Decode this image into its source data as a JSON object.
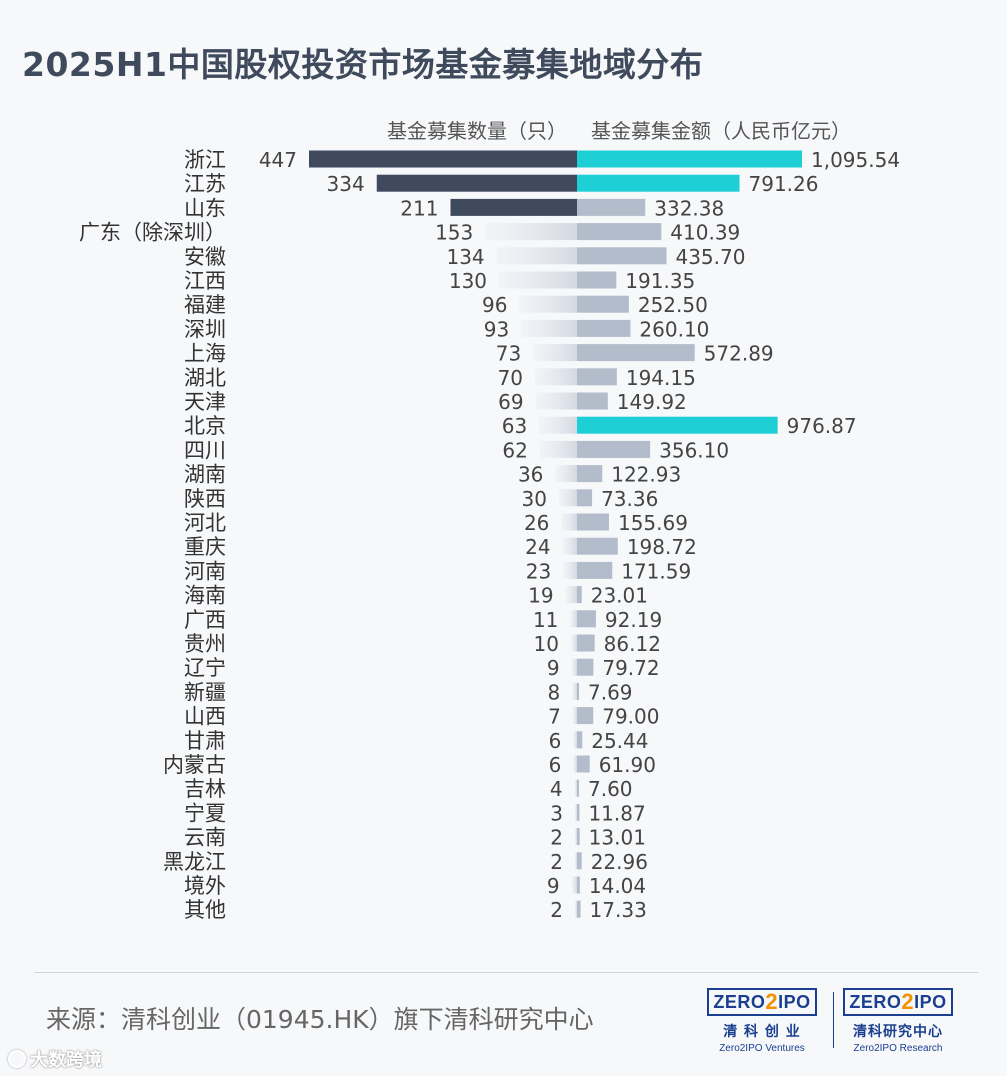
{
  "title": "2025H1中国股权投资市场基金募集地域分布",
  "source": "来源：清科创业（01945.HK）旗下清科研究中心",
  "watermark": "大数跨境",
  "logos": [
    {
      "mark_left": "ZERO",
      "mark_two": "2",
      "mark_right": "IPO",
      "cn": "清 科 创 业",
      "en": "Zero2IPO Ventures"
    },
    {
      "mark_left": "ZERO",
      "mark_two": "2",
      "mark_right": "IPO",
      "cn": "清科研究中心",
      "en": "Zero2IPO Research"
    }
  ],
  "colors": {
    "count_highlight": "#3f4a5f",
    "amount_highlight": "#1ecfd6",
    "amount_normal": "#b3bccb",
    "count_normal": "#d9dde4"
  },
  "chart_data": {
    "type": "bar",
    "orientation": "horizontal-butterfly",
    "categories": [
      "浙江",
      "江苏",
      "山东",
      "广东（除深圳）",
      "安徽",
      "江西",
      "福建",
      "深圳",
      "上海",
      "湖北",
      "天津",
      "北京",
      "四川",
      "湖南",
      "陕西",
      "河北",
      "重庆",
      "河南",
      "海南",
      "广西",
      "贵州",
      "辽宁",
      "新疆",
      "山西",
      "甘肃",
      "内蒙古",
      "吉林",
      "宁夏",
      "云南",
      "黑龙江",
      "境外",
      "其他"
    ],
    "series": [
      {
        "name": "基金募集数量（只）",
        "side": "left",
        "values": [
          447,
          334,
          211,
          153,
          134,
          130,
          96,
          93,
          73,
          70,
          69,
          63,
          62,
          36,
          30,
          26,
          24,
          23,
          19,
          11,
          10,
          9,
          8,
          7,
          6,
          6,
          4,
          3,
          2,
          2,
          9,
          2
        ],
        "labels": [
          "447",
          "334",
          "211",
          "153",
          "134",
          "130",
          "96",
          "93",
          "73",
          "70",
          "69",
          "63",
          "62",
          "36",
          "30",
          "26",
          "24",
          "23",
          "19",
          "11",
          "10",
          "9",
          "8",
          "7",
          "6",
          "6",
          "4",
          "3",
          "2",
          "2",
          "9",
          "2"
        ],
        "highlight_top": 3
      },
      {
        "name": "基金募集金额（人民币亿元）",
        "side": "right",
        "values": [
          1095.54,
          791.26,
          332.38,
          410.39,
          435.7,
          191.35,
          252.5,
          260.1,
          572.89,
          194.15,
          149.92,
          976.87,
          356.1,
          122.93,
          73.36,
          155.69,
          198.72,
          171.59,
          23.01,
          92.19,
          86.12,
          79.72,
          7.69,
          79.0,
          25.44,
          61.9,
          7.6,
          11.87,
          13.01,
          22.96,
          14.04,
          17.33
        ],
        "labels": [
          "1,095.54",
          "791.26",
          "332.38",
          "410.39",
          "435.70",
          "191.35",
          "252.50",
          "260.10",
          "572.89",
          "194.15",
          "149.92",
          "976.87",
          "356.10",
          "122.93",
          "73.36",
          "155.69",
          "198.72",
          "171.59",
          "23.01",
          "92.19",
          "86.12",
          "79.72",
          "7.69",
          "79.00",
          "25.44",
          "61.90",
          "7.60",
          "11.87",
          "13.01",
          "22.96",
          "14.04",
          "17.33"
        ],
        "highlight_top": 3
      }
    ]
  }
}
